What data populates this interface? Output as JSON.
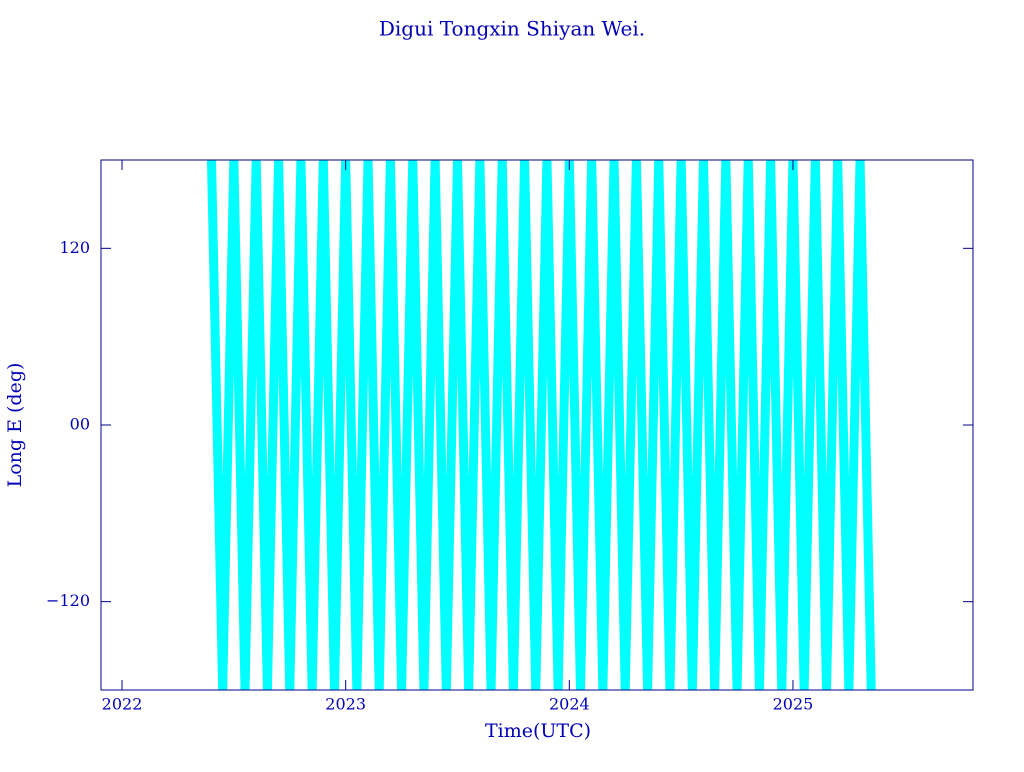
{
  "chart_data": {
    "type": "line",
    "title": "Digui Tongxin Shiyan Wei.",
    "x_label": "Time(UTC)",
    "y_label": "Long E (deg)",
    "xlim": [
      2021.906,
      2025.805
    ],
    "ylim": [
      -180,
      180
    ],
    "xticks": [
      2022,
      2023,
      2024,
      2025
    ],
    "yticks": [
      {
        "value": -120,
        "label": "−120"
      },
      {
        "value": 0,
        "label": "00"
      },
      120
    ],
    "series": [
      {
        "color": "#00ffff",
        "x": [
          2022.4,
          2022.45,
          2022.5,
          2022.55,
          2022.6,
          2022.65,
          2022.7,
          2022.75,
          2022.8,
          2022.85,
          2022.9,
          2022.95,
          2023.0,
          2023.05,
          2023.1,
          2023.15,
          2023.2,
          2023.25,
          2023.3,
          2023.35,
          2023.4,
          2023.45,
          2023.5,
          2023.55,
          2023.6,
          2023.65,
          2023.7,
          2023.75,
          2023.8,
          2023.85,
          2023.9,
          2023.95,
          2024.0,
          2024.05,
          2024.1,
          2024.15,
          2024.2,
          2024.25,
          2024.3,
          2024.35,
          2024.4,
          2024.45,
          2024.5,
          2024.55,
          2024.6,
          2024.65,
          2024.7,
          2024.75,
          2024.8,
          2024.85,
          2024.9,
          2024.95,
          2025.0,
          2025.05,
          2025.1,
          2025.15,
          2025.2,
          2025.25,
          2025.3,
          2025.35
        ],
        "values": [
          180,
          -180,
          180,
          -180,
          180,
          -180,
          180,
          -180,
          180,
          -180,
          180,
          -180,
          180,
          -180,
          180,
          -180,
          180,
          -180,
          180,
          -180,
          180,
          -180,
          180,
          -180,
          180,
          -180,
          180,
          -180,
          180,
          -180,
          180,
          -180,
          180,
          -180,
          180,
          -180,
          180,
          -180,
          180,
          -180,
          180,
          -180,
          180,
          -180,
          180,
          -180,
          180,
          -180,
          180,
          -180,
          180,
          -180,
          180,
          -180,
          180,
          -180,
          180,
          -180,
          180,
          -180
        ]
      }
    ]
  }
}
